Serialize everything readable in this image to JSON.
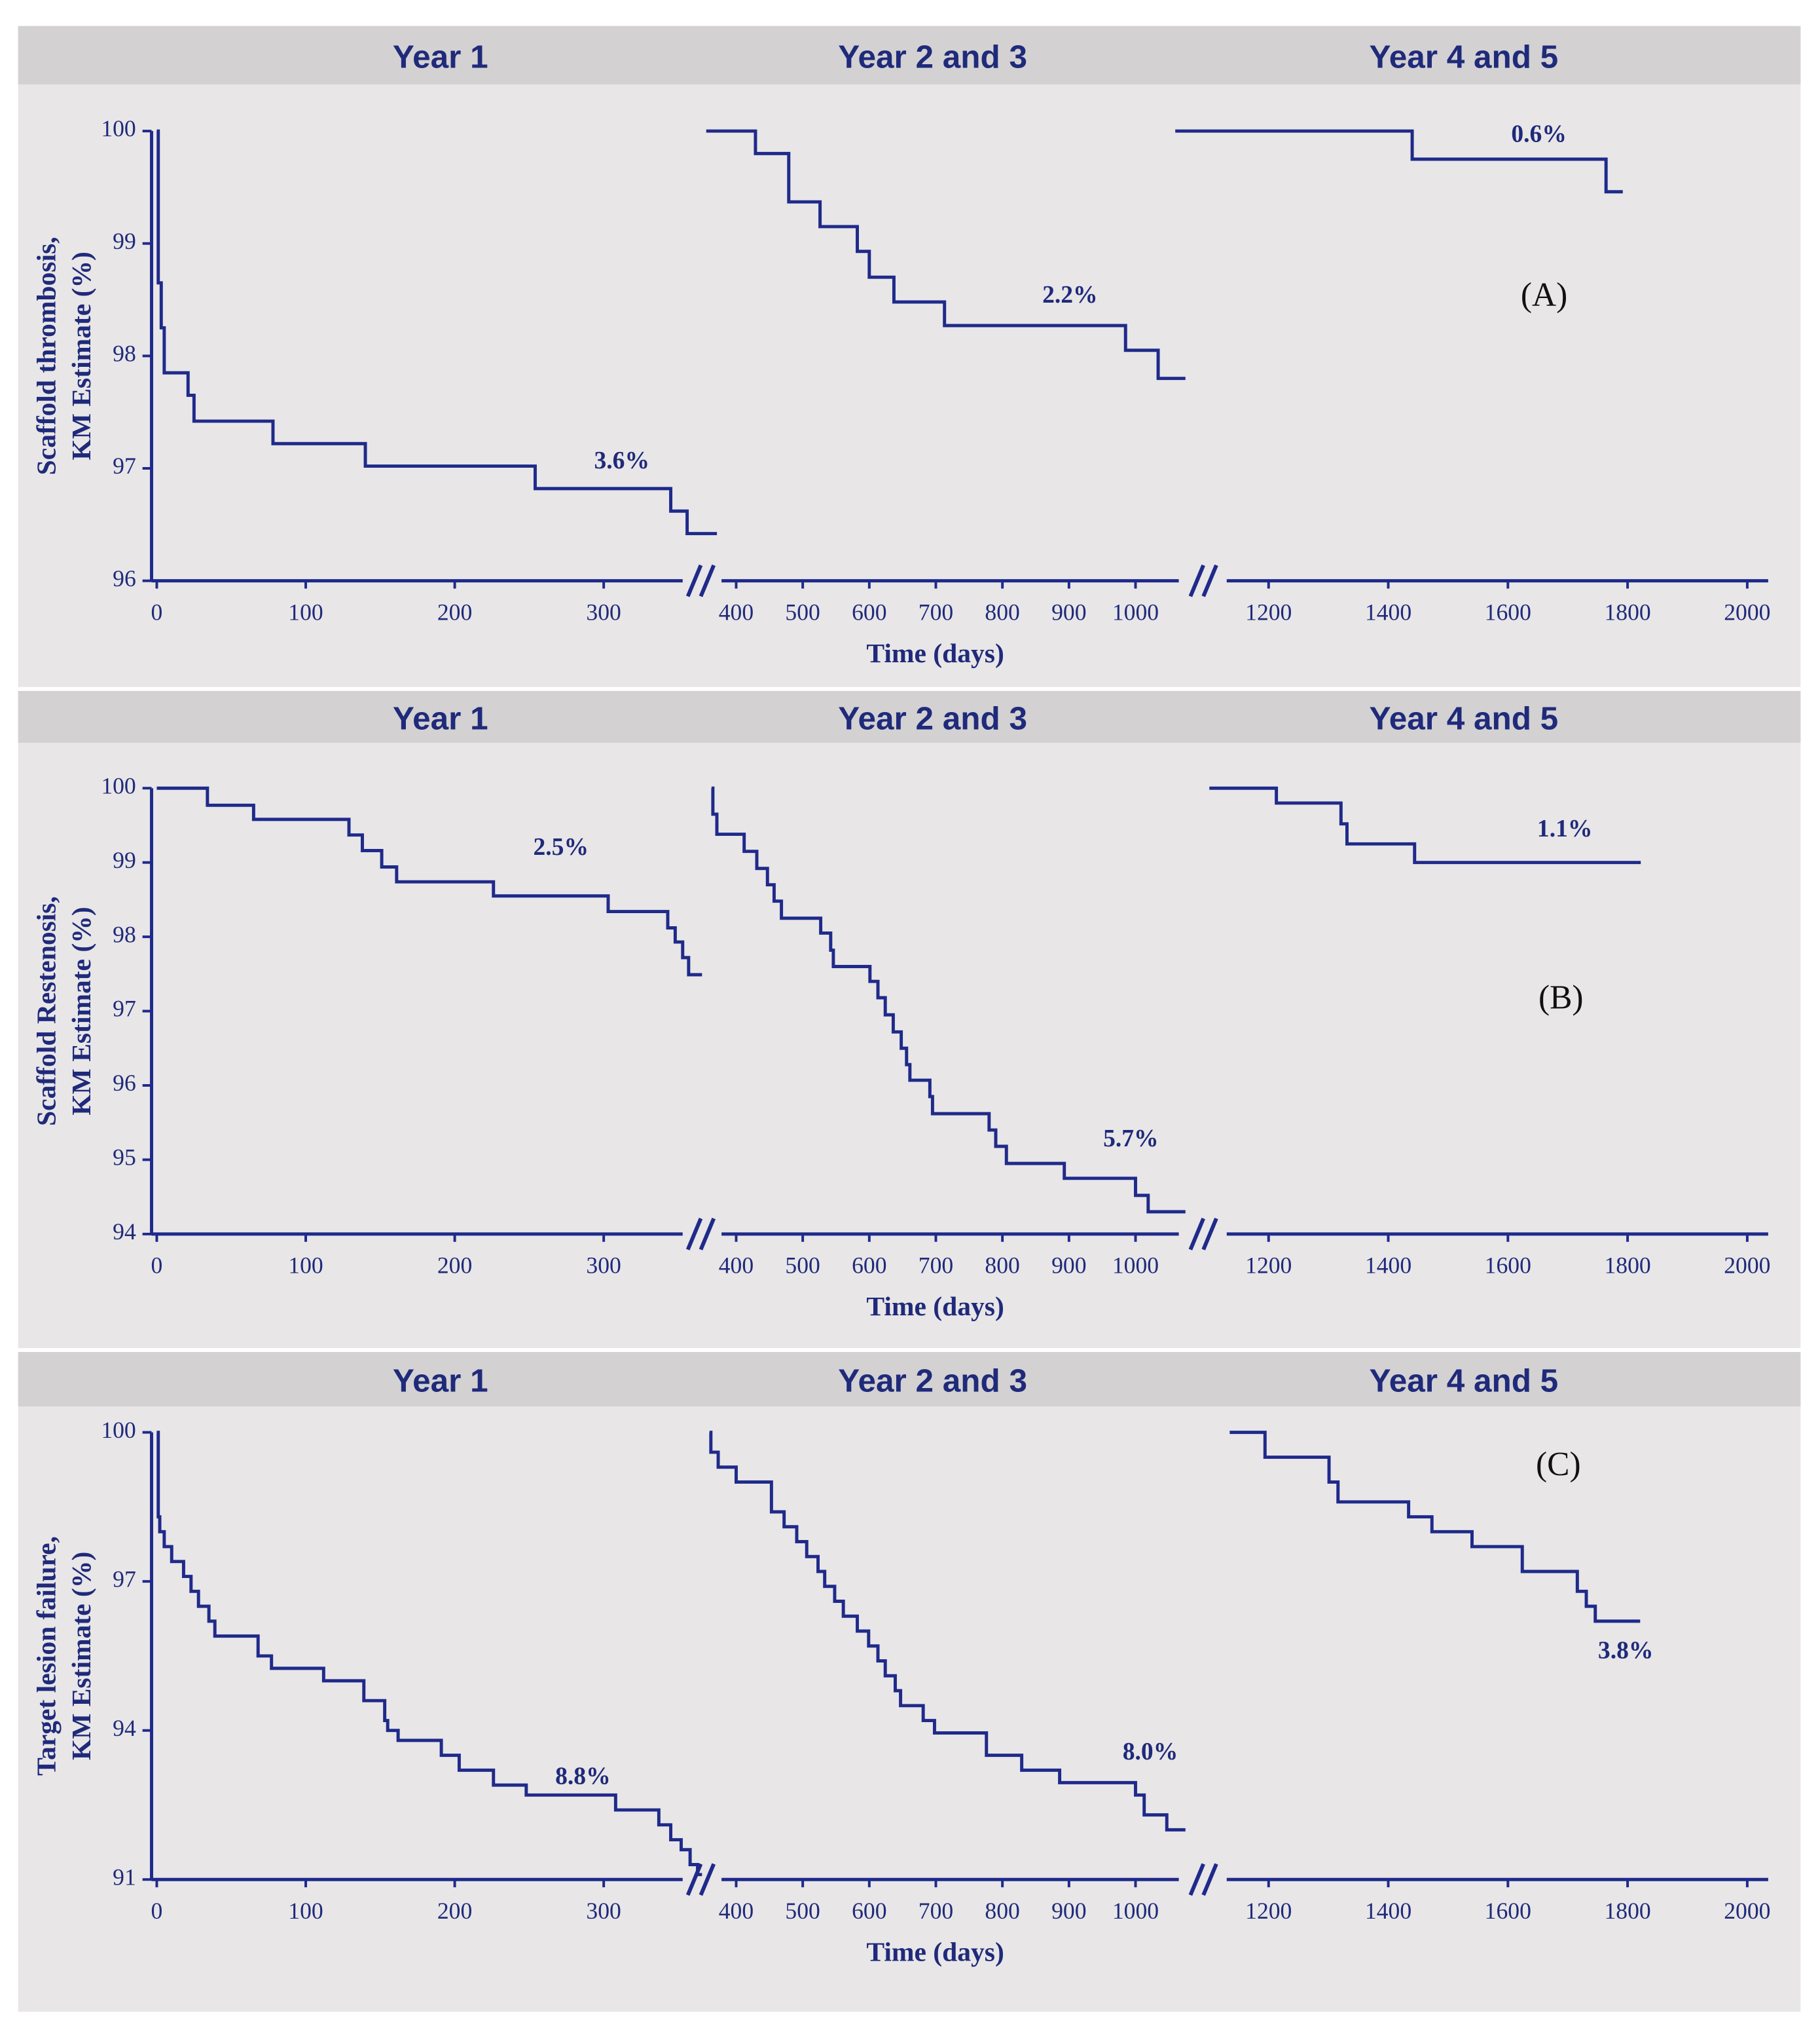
{
  "chart_data": [
    {
      "type": "step",
      "label": "(A)",
      "ylabel": [
        "Scaffold thrombosis,",
        "KM Estimate (%)"
      ],
      "xlabel": "Time (days)",
      "color": "#1f2a8a",
      "ylim": [
        96,
        100
      ],
      "yticks": [
        96,
        97,
        98,
        99,
        100
      ],
      "segments": [
        {
          "title": "Year 1",
          "xlim": [
            -3.5,
            353
          ],
          "xticks": [
            0,
            100,
            200,
            300
          ],
          "annotation": "3.6%",
          "x": [
            0,
            1,
            3,
            5,
            21,
            25,
            78,
            140,
            254,
            345,
            356,
            376
          ],
          "values": [
            100,
            98.65,
            98.25,
            97.85,
            97.65,
            97.42,
            97.22,
            97.02,
            96.82,
            96.62,
            96.42,
            96.42
          ]
        },
        {
          "title": "Year 2 and 3",
          "xlim": [
            378,
            1065
          ],
          "xticks": [
            400,
            500,
            600,
            700,
            800,
            900,
            1000
          ],
          "annotation": "2.2%",
          "x": [
            355,
            429,
            479,
            526,
            582,
            600,
            637,
            713,
            985,
            1034,
            1075
          ],
          "values": [
            100,
            99.8,
            99.37,
            99.15,
            98.93,
            98.7,
            98.48,
            98.27,
            98.05,
            97.8,
            97.8
          ]
        },
        {
          "title": "Year 4 and 5",
          "xlim": [
            1130,
            2035
          ],
          "xticks": [
            1200,
            1400,
            1600,
            1800,
            2000
          ],
          "annotation": "0.6%",
          "x": [
            1044,
            1440,
            1764,
            1792
          ],
          "values": [
            100,
            99.75,
            99.46,
            99.46
          ]
        }
      ]
    },
    {
      "type": "step",
      "label": "(B)",
      "ylabel": [
        "Scaffold Restenosis,",
        "KM Estimate (%)"
      ],
      "xlabel": "Time (days)",
      "color": "#1f2a8a",
      "ylim": [
        94,
        100
      ],
      "yticks": [
        94,
        95,
        96,
        97,
        98,
        99,
        100
      ],
      "segments": [
        {
          "title": "Year 1",
          "xlim": [
            -3.5,
            353
          ],
          "xticks": [
            0,
            100,
            200,
            300
          ],
          "annotation": "2.5%",
          "x": [
            0,
            34,
            65,
            129,
            138,
            151,
            161,
            226,
            303,
            343,
            348,
            353,
            357,
            366
          ],
          "values": [
            100,
            99.77,
            99.58,
            99.37,
            99.16,
            98.94,
            98.74,
            98.55,
            98.34,
            98.12,
            97.93,
            97.72,
            97.49,
            97.49
          ]
        },
        {
          "title": "Year 2 and 3",
          "xlim": [
            378,
            1065
          ],
          "xticks": [
            400,
            500,
            600,
            700,
            800,
            900,
            1000
          ],
          "annotation": "5.7%",
          "x": [
            363,
            365,
            371,
            412,
            431,
            447,
            457,
            468,
            527,
            542,
            546,
            601,
            613,
            624,
            636,
            648,
            656,
            661,
            691,
            695,
            780,
            790,
            806,
            893,
            1000,
            1019,
            1075
          ],
          "values": [
            100,
            99.65,
            99.38,
            99.15,
            98.92,
            98.7,
            98.48,
            98.25,
            98.05,
            97.82,
            97.6,
            97.4,
            97.18,
            96.95,
            96.72,
            96.5,
            96.28,
            96.07,
            95.85,
            95.62,
            95.4,
            95.18,
            94.95,
            94.75,
            94.52,
            94.3,
            94.3
          ]
        },
        {
          "title": "Year 4 and 5",
          "xlim": [
            1130,
            2035
          ],
          "xticks": [
            1200,
            1400,
            1600,
            1800,
            2000
          ],
          "annotation": "1.1%",
          "x": [
            1101,
            1213,
            1321,
            1331,
            1444,
            1822
          ],
          "values": [
            100,
            99.8,
            99.52,
            99.25,
            99.0,
            99.0
          ]
        }
      ]
    },
    {
      "type": "step",
      "label": "(C)",
      "ylabel": [
        "Target lesion failure,",
        "KM Estimate (%)"
      ],
      "xlabel": "Time (days)",
      "color": "#1f2a8a",
      "ylim": [
        91,
        100
      ],
      "yticks": [
        91,
        94,
        97,
        100
      ],
      "segments": [
        {
          "title": "Year 1",
          "xlim": [
            -3.5,
            353
          ],
          "xticks": [
            0,
            100,
            200,
            300
          ],
          "annotation": "8.8%",
          "x": [
            0,
            1,
            2,
            5,
            10,
            18,
            23,
            28,
            35,
            39,
            68,
            77,
            112,
            139,
            153,
            155,
            162,
            191,
            203,
            226,
            248,
            308,
            337,
            345,
            352,
            358,
            363,
            366
          ],
          "values": [
            100,
            98.3,
            98.0,
            97.7,
            97.4,
            97.1,
            96.8,
            96.5,
            96.2,
            95.9,
            95.5,
            95.25,
            95.0,
            94.6,
            94.2,
            94.0,
            93.8,
            93.5,
            93.2,
            92.9,
            92.7,
            92.4,
            92.1,
            91.8,
            91.6,
            91.3,
            91.1,
            91.1
          ]
        },
        {
          "title": "Year 2 and 3",
          "xlim": [
            378,
            1065
          ],
          "xticks": [
            400,
            500,
            600,
            700,
            800,
            900,
            1000
          ],
          "annotation": "8.0%",
          "x": [
            360,
            362,
            373,
            400,
            453,
            472,
            491,
            506,
            523,
            533,
            548,
            561,
            582,
            599,
            613,
            624,
            639,
            647,
            681,
            698,
            776,
            829,
            886,
            1000,
            1013,
            1047,
            1075
          ],
          "values": [
            100,
            99.6,
            99.3,
            99.0,
            98.4,
            98.1,
            97.8,
            97.5,
            97.2,
            96.9,
            96.6,
            96.3,
            96.0,
            95.7,
            95.4,
            95.1,
            94.8,
            94.5,
            94.2,
            93.95,
            93.5,
            93.2,
            92.95,
            92.7,
            92.3,
            92.0,
            92.0
          ]
        },
        {
          "title": "Year 4 and 5",
          "xlim": [
            1130,
            2035
          ],
          "xticks": [
            1200,
            1400,
            1600,
            1800,
            2000
          ],
          "annotation": "3.8%",
          "x": [
            1135,
            1194,
            1301,
            1316,
            1434,
            1473,
            1540,
            1624,
            1716,
            1731,
            1746,
            1821
          ],
          "values": [
            100,
            99.5,
            99.0,
            98.6,
            98.3,
            98.0,
            97.7,
            97.2,
            96.8,
            96.5,
            96.2,
            96.2
          ]
        }
      ]
    }
  ]
}
